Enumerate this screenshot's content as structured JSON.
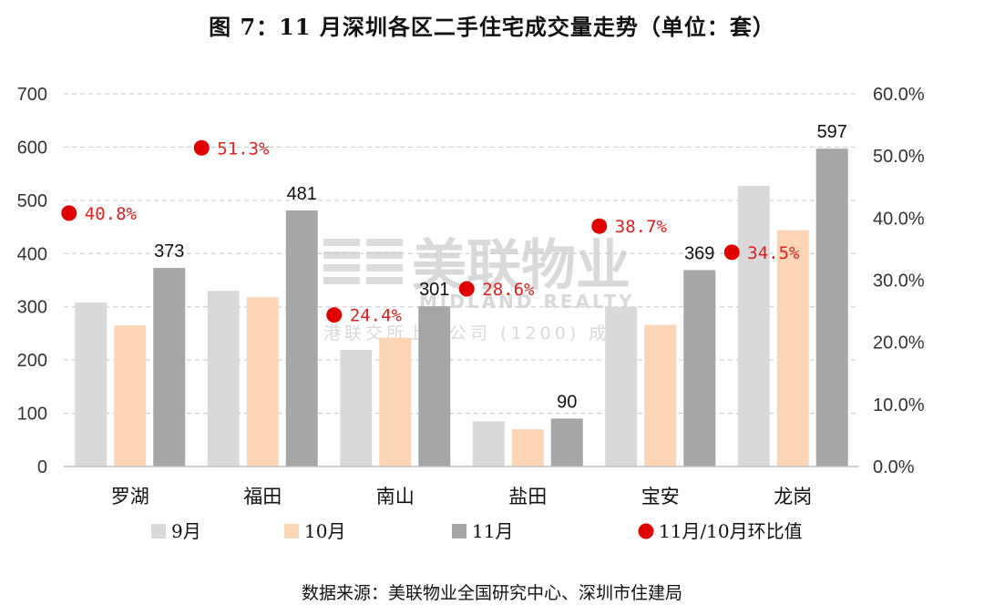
{
  "title": "图 7：11 月深圳各区二手住宅成交量走势（单位：套）",
  "source": "数据来源：美联物业全国研究中心、深圳市住建局",
  "watermark": {
    "brand": "美联物业",
    "brand_en": "MIDLAND REALTY",
    "company": "港联交所上市公司 (1200) 成"
  },
  "chart_data": {
    "type": "bar",
    "categories": [
      "罗湖",
      "福田",
      "南山",
      "盐田",
      "宝安",
      "龙岗"
    ],
    "series": [
      {
        "name": "9月",
        "values": [
          308,
          330,
          219,
          85,
          300,
          527
        ],
        "color": "#d9d9d9"
      },
      {
        "name": "10月",
        "values": [
          265,
          318,
          242,
          70,
          266,
          444
        ],
        "color": "#fbd5b5"
      },
      {
        "name": "11月",
        "values": [
          373,
          481,
          301,
          90,
          369,
          597
        ],
        "color": "#a6a6a6",
        "labels": [
          "373",
          "481",
          "301",
          "90",
          "369",
          "597"
        ]
      }
    ],
    "secondary_series": {
      "name": "11月/10月环比值",
      "type": "scatter",
      "axis": "right",
      "values": [
        40.8,
        51.3,
        24.4,
        28.6,
        38.7,
        34.5
      ],
      "labels": [
        "40.8%",
        "51.3%",
        "24.4%",
        "28.6%",
        "38.7%",
        "34.5%"
      ],
      "color": "#e00000"
    },
    "y_left": {
      "min": 0,
      "max": 700,
      "ticks": [
        "0",
        "100",
        "200",
        "300",
        "400",
        "500",
        "600",
        "700"
      ]
    },
    "y_right": {
      "min": 0,
      "max": 60,
      "ticks": [
        "0.0%",
        "10.0%",
        "20.0%",
        "30.0%",
        "40.0%",
        "50.0%",
        "60.0%"
      ]
    },
    "grid": true,
    "legend_position": "bottom"
  }
}
